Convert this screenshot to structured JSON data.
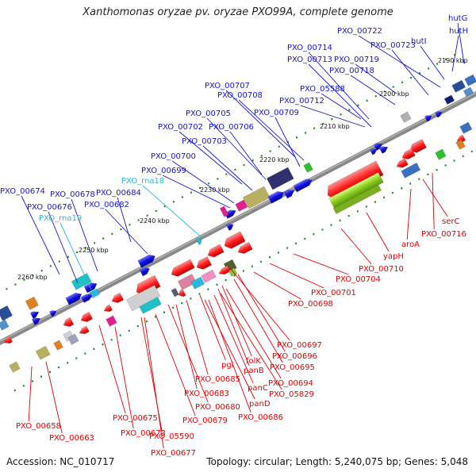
{
  "title": "Xanthomonas oryzae pv. oryzae PXO99A, complete genome",
  "footer": {
    "accession": "Accession: NC_010717",
    "info": "Topology: circular; Length: 5,240,075 bp; Genes: 5,048"
  },
  "colors": {
    "forward_label": "#1515c8",
    "reverse_label": "#e00000",
    "rna_label": "#28b8e0",
    "backbone": "#888888",
    "forward_gene": "#1010e0",
    "reverse_gene": "#e81010",
    "tick": "#1a8a1a"
  },
  "ticks": [
    {
      "label": "2190 kbp"
    },
    {
      "label": "2200 kbp"
    },
    {
      "label": "2210 kbp"
    },
    {
      "label": "2220 kbp"
    },
    {
      "label": "2230 kbp"
    },
    {
      "label": "2240 kbp"
    },
    {
      "label": "2250 kbp"
    },
    {
      "label": "2260 kbp"
    }
  ],
  "forward_labels": [
    {
      "text": "hutG",
      "kind": "gene"
    },
    {
      "text": "hutH",
      "kind": "gene"
    },
    {
      "text": "hutI",
      "kind": "gene"
    },
    {
      "text": "PXO_00722",
      "kind": "gene"
    },
    {
      "text": "PXO_00723",
      "kind": "gene"
    },
    {
      "text": "PXO_00714",
      "kind": "gene"
    },
    {
      "text": "PXO_00713",
      "kind": "gene"
    },
    {
      "text": "PXO_00719",
      "kind": "gene"
    },
    {
      "text": "PXO_00718",
      "kind": "gene"
    },
    {
      "text": "PXO_05588",
      "kind": "gene"
    },
    {
      "text": "PXO_00707",
      "kind": "gene"
    },
    {
      "text": "PXO_00708",
      "kind": "gene"
    },
    {
      "text": "PXO_00712",
      "kind": "gene"
    },
    {
      "text": "PXO_00705",
      "kind": "gene"
    },
    {
      "text": "PXO_00709",
      "kind": "gene"
    },
    {
      "text": "PXO_00702",
      "kind": "gene"
    },
    {
      "text": "PXO_00706",
      "kind": "gene"
    },
    {
      "text": "PXO_00703",
      "kind": "gene"
    },
    {
      "text": "PXO_00700",
      "kind": "gene"
    },
    {
      "text": "PXO_00699",
      "kind": "gene"
    },
    {
      "text": "PXO_rna18",
      "kind": "rna"
    },
    {
      "text": "PXO_00674",
      "kind": "gene"
    },
    {
      "text": "PXO_00678",
      "kind": "gene"
    },
    {
      "text": "PXO_00684",
      "kind": "gene"
    },
    {
      "text": "PXO_00676",
      "kind": "gene"
    },
    {
      "text": "PXO_00682",
      "kind": "gene"
    },
    {
      "text": "PXO_rna19",
      "kind": "rna"
    }
  ],
  "reverse_labels": [
    {
      "text": "serC"
    },
    {
      "text": "PXO_00716"
    },
    {
      "text": "aroA"
    },
    {
      "text": "yapH"
    },
    {
      "text": "PXO_00710"
    },
    {
      "text": "PXO_00704"
    },
    {
      "text": "PXO_00701"
    },
    {
      "text": "PXO_00698"
    },
    {
      "text": "PXO_00697"
    },
    {
      "text": "PXO_00696"
    },
    {
      "text": "PXO_00695"
    },
    {
      "text": "folK"
    },
    {
      "text": "panB"
    },
    {
      "text": "pgi"
    },
    {
      "text": "PXO_00694"
    },
    {
      "text": "PXO_00685"
    },
    {
      "text": "panC"
    },
    {
      "text": "PXO_05829"
    },
    {
      "text": "PXO_00683"
    },
    {
      "text": "panD"
    },
    {
      "text": "PXO_00680"
    },
    {
      "text": "PXO_00686"
    },
    {
      "text": "PXO_00675"
    },
    {
      "text": "PXO_00679"
    },
    {
      "text": "PXO_00658"
    },
    {
      "text": "PXO_00673"
    },
    {
      "text": "PXO_05590"
    },
    {
      "text": "PXO_00663"
    },
    {
      "text": "PXO_00677"
    }
  ]
}
